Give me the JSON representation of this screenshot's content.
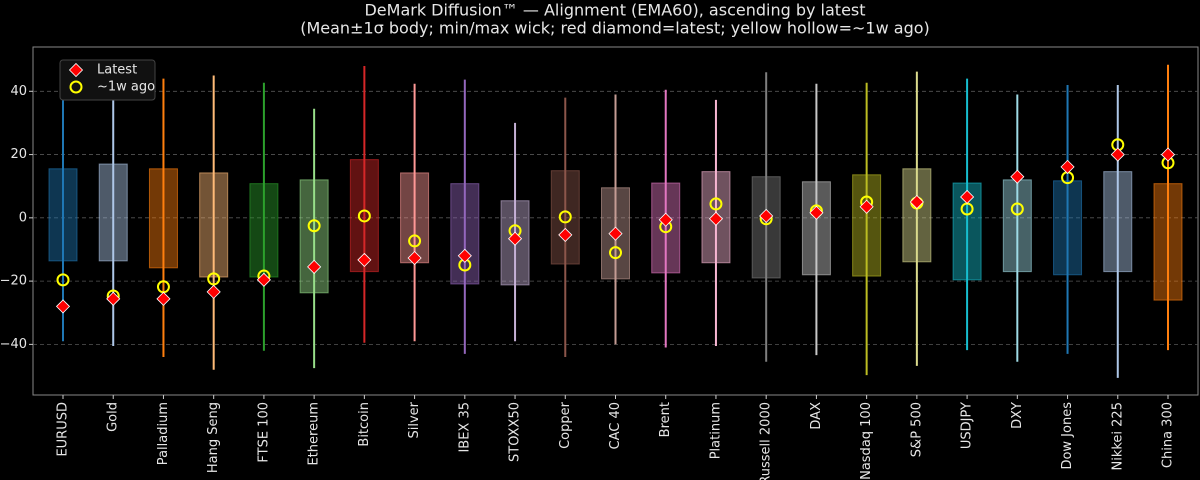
{
  "chart_data": {
    "type": "box",
    "title": "DeMark Diffusion™ — Alignment (EMA60), ascending by latest",
    "subtitle": "(Mean±1σ body; min/max wick; red diamond=latest; yellow hollow=~1w ago)",
    "categories": [
      "EURUSD",
      "Gold",
      "Palladium",
      "Hang Seng",
      "FTSE 100",
      "Ethereum",
      "Bitcoin",
      "Silver",
      "IBEX 35",
      "STOXX50",
      "Copper",
      "CAC 40",
      "Brent",
      "Platinum",
      "Russell 2000",
      "DAX",
      "Nasdaq 100",
      "S&P 500",
      "USDJPY",
      "DXY",
      "Dow Jones",
      "Nikkei 225",
      "China 300"
    ],
    "colors": [
      "#1f77b4",
      "#aec7e8",
      "#ff7f0e",
      "#ffbb78",
      "#2ca02c",
      "#98df8a",
      "#d62728",
      "#ff9896",
      "#9467bd",
      "#c5b0d5",
      "#8c564b",
      "#c49c94",
      "#e377c2",
      "#f7b6d2",
      "#7f7f7f",
      "#c7c7c7",
      "#bcbd22",
      "#dbdb8d",
      "#17becf",
      "#9edae5",
      "#1f77b4",
      "#aec7e8",
      "#ff7f0e"
    ],
    "body_high": [
      15.5,
      17,
      15.5,
      14.2,
      10.8,
      12,
      18.4,
      14.2,
      10.8,
      5.4,
      14.9,
      9.5,
      11,
      14.6,
      13,
      11.4,
      13.6,
      15.5,
      11,
      12,
      11.7,
      14.6,
      10.8
    ],
    "body_low": [
      -13.6,
      -13.6,
      -15.8,
      -18.7,
      -18.7,
      -23.7,
      -17,
      -14.2,
      -20.9,
      -21.2,
      -14.6,
      -19.3,
      -17.4,
      -14.2,
      -19,
      -18,
      -18.4,
      -13.9,
      -19.6,
      -17,
      -18,
      -17,
      -26
    ],
    "max": [
      45,
      44,
      44,
      45,
      42.7,
      34.5,
      48,
      42.4,
      43.7,
      30,
      38,
      39,
      40.5,
      37.3,
      46,
      42.4,
      42.7,
      46.2,
      44,
      39,
      42,
      42,
      48.4
    ],
    "min": [
      -39,
      -40.5,
      -44,
      -48,
      -42,
      -47.5,
      -39.5,
      -39,
      -43,
      -39,
      -44,
      -40,
      -41,
      -40.5,
      -45.5,
      -43.4,
      -49.7,
      -46.8,
      -41.8,
      -45.5,
      -43,
      -50.6,
      -41.8
    ],
    "series": [
      {
        "name": "Latest",
        "color": "#ff0000",
        "values": [
          -28,
          -25.6,
          -25.6,
          -23.4,
          -19.6,
          -15.5,
          -13.3,
          -12.7,
          -12,
          -6.6,
          -5.4,
          -5,
          -0.6,
          -0.3,
          0.6,
          1.6,
          3.5,
          5,
          6.6,
          13,
          16.1,
          20,
          20
        ]
      },
      {
        "name": "~1w ago",
        "color": "#ffff00",
        "values": [
          -19.6,
          -24.7,
          -21.8,
          -19.3,
          -18.4,
          -2.5,
          0.6,
          -7.3,
          -14.9,
          -4.1,
          0.3,
          -11,
          -2.8,
          4.4,
          -0.3,
          2.2,
          5,
          4.7,
          2.8,
          2.8,
          12.7,
          23.1,
          17.4
        ]
      }
    ],
    "ylim": [
      -56,
      54
    ],
    "yticks": [
      {
        "value": -40,
        "label": "−40"
      },
      {
        "value": -20,
        "label": "−20"
      },
      0,
      20,
      40
    ],
    "grid": true
  }
}
